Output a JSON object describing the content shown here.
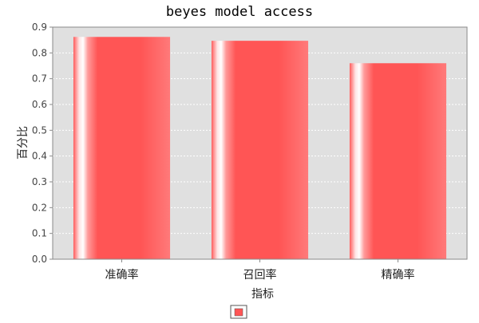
{
  "chart_data": {
    "type": "bar",
    "title": "beyes model access",
    "xlabel": "指标",
    "ylabel": "百分比",
    "categories": [
      "准确率",
      "召回率",
      "精确率"
    ],
    "series": [
      {
        "values": [
          0.862,
          0.847,
          0.76
        ]
      }
    ],
    "ylim": [
      0,
      0.9
    ],
    "yticks": [
      "0.0",
      "0.1",
      "0.2",
      "0.3",
      "0.4",
      "0.5",
      "0.6",
      "0.7",
      "0.8",
      "0.9"
    ],
    "grid": true,
    "legend": "bottom-center",
    "colors": {
      "bar": "#ff5555",
      "plot_bg": "#e0e0e0",
      "grid": "#ffffff",
      "legend_swatch": "#ff5555"
    }
  }
}
